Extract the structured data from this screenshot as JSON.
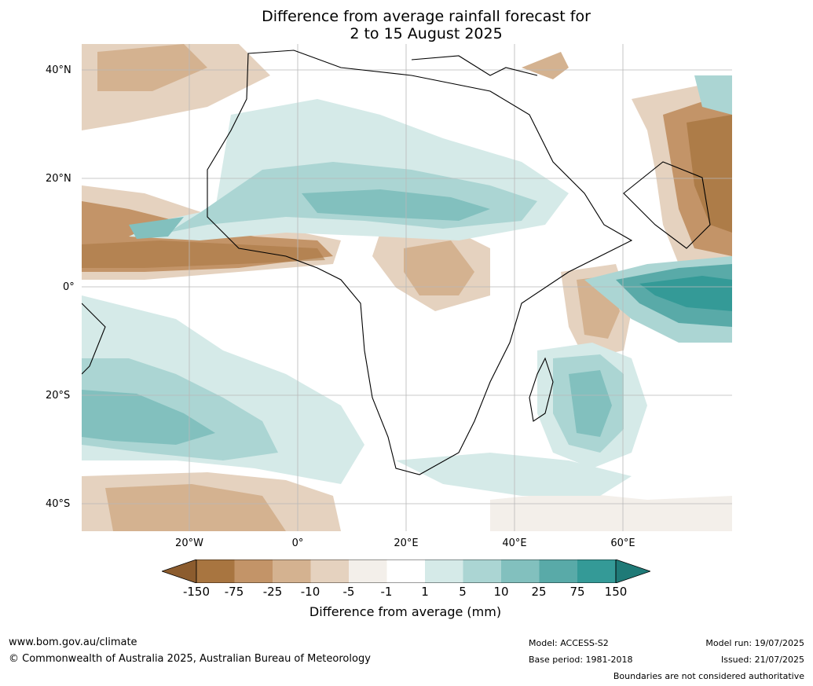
{
  "title": {
    "line1": "Difference from average rainfall forecast for",
    "line2": "2 to 15 August 2025"
  },
  "map": {
    "region": "Africa",
    "lat_labels": [
      "40°N",
      "20°N",
      "0°",
      "20°S",
      "40°S"
    ],
    "lon_labels": [
      "20°W",
      "0°",
      "20°E",
      "40°E",
      "60°E"
    ],
    "lat_range": [
      -45,
      45
    ],
    "lon_range": [
      -40,
      80
    ],
    "grid": true
  },
  "colorbar": {
    "title": "Difference from average (mm)",
    "ticks": [
      "-150",
      "-75",
      "-25",
      "-10",
      "-5",
      "-1",
      "1",
      "5",
      "10",
      "25",
      "75",
      "150"
    ],
    "colors": {
      "lt_-150": "#8c5c2e",
      "-150_-75": "#a87540",
      "-75_-25": "#c39468",
      "-25_-10": "#d4b290",
      "-10_-5": "#e5d2bf",
      "-5_-1": "#f3efea",
      "-1_1": "#ffffff",
      "1_5": "#d5eae8",
      "5_10": "#abd5d3",
      "10_25": "#82c0be",
      "25_75": "#59aaa8",
      "75_150": "#349a97",
      "gt_150": "#1f7a77"
    }
  },
  "footer": {
    "website": "www.bom.gov.au/climate",
    "copyright": "© Commonwealth of Australia 2025, Australian Bureau of Meteorology",
    "model": "Model: ACCESS-S2",
    "base_period": "Base period: 1981-2018",
    "model_run": "Model run: 19/07/2025",
    "issued": "Issued: 21/07/2025",
    "disclaimer": "Boundaries are not considered authoritative"
  }
}
